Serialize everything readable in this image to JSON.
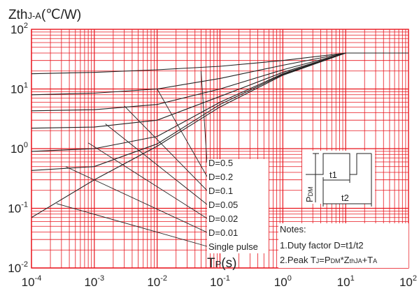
{
  "chart_data": {
    "type": "line",
    "ylabel_main": "Zth",
    "ylabel_sub": "J-A",
    "ylabel_unit": "(℃/W)",
    "xlabel_main": "T",
    "xlabel_sub": "P",
    "xlabel_unit": "(s)",
    "x_scale": "log",
    "y_scale": "log",
    "xlim": [
      0.0001,
      100
    ],
    "ylim": [
      0.01,
      100
    ],
    "grid": true,
    "colors": {
      "grid": "#e8141c",
      "curve": "#222222",
      "text": "#222222"
    },
    "x_ticks": [
      {
        "base": "10",
        "exp": "-4"
      },
      {
        "base": "10",
        "exp": "-3"
      },
      {
        "base": "10",
        "exp": "-2"
      },
      {
        "base": "10",
        "exp": "-1"
      },
      {
        "base": "10",
        "exp": "0"
      },
      {
        "base": "10",
        "exp": "1"
      },
      {
        "base": "10",
        "exp": "2"
      }
    ],
    "y_ticks": [
      {
        "base": "10",
        "exp": "2"
      },
      {
        "base": "10",
        "exp": "1"
      },
      {
        "base": "10",
        "exp": "0"
      },
      {
        "base": "10",
        "exp": "-1"
      },
      {
        "base": "10",
        "exp": "-2"
      }
    ],
    "series": [
      {
        "name": "D=0.5",
        "x": [
          0.0001,
          0.001,
          0.01,
          0.1,
          1,
          10,
          100
        ],
        "y": [
          18,
          19,
          21,
          24,
          30,
          40,
          40
        ]
      },
      {
        "name": "D=0.2",
        "x": [
          0.0001,
          0.001,
          0.01,
          0.1,
          1,
          10,
          100
        ],
        "y": [
          8,
          8.5,
          10,
          15,
          25,
          40,
          40
        ]
      },
      {
        "name": "D=0.1",
        "x": [
          0.0001,
          0.001,
          0.01,
          0.1,
          1,
          10,
          100
        ],
        "y": [
          4.3,
          4.5,
          5.5,
          10,
          21,
          40,
          40
        ]
      },
      {
        "name": "D=0.05",
        "x": [
          0.0001,
          0.001,
          0.01,
          0.1,
          1,
          10,
          100
        ],
        "y": [
          2.2,
          2.3,
          3,
          7.5,
          19,
          40,
          40
        ]
      },
      {
        "name": "D=0.02",
        "x": [
          0.0001,
          0.001,
          0.01,
          0.1,
          1,
          10,
          100
        ],
        "y": [
          0.9,
          1,
          1.6,
          6,
          18,
          40,
          40
        ]
      },
      {
        "name": "D=0.01",
        "x": [
          0.0001,
          0.001,
          0.01,
          0.1,
          1,
          10,
          100
        ],
        "y": [
          0.43,
          0.5,
          1.2,
          5.5,
          17.5,
          40,
          40
        ]
      },
      {
        "name": "Single pulse",
        "x": [
          0.0001,
          0.001,
          0.01,
          0.1,
          1,
          10,
          100
        ],
        "y": [
          0.07,
          0.3,
          1.1,
          5,
          17,
          40,
          40
        ]
      }
    ],
    "series_labels": [
      "D=0.5",
      "D=0.2",
      "D=0.1",
      "D=0.05",
      "D=0.02",
      "D=0.01",
      "Single pulse"
    ],
    "inset": {
      "pdm_main": "P",
      "pdm_sub": "DM",
      "t1": "t1",
      "t2": "t2"
    },
    "notes": {
      "title": "Notes:",
      "line1": "1.Duty factor D=t1/t2",
      "line2_prefix": "2.Peak T",
      "line2_sub1": "J",
      "line2_mid1": "=P",
      "line2_sub2": "DM",
      "line2_mid2": "*Z",
      "line2_sub3": "thJA",
      "line2_mid3": "+T",
      "line2_sub4": "A"
    }
  }
}
